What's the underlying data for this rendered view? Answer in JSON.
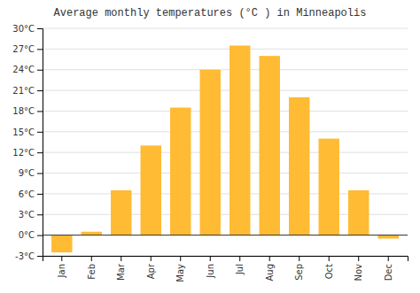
{
  "chart_data": {
    "type": "bar",
    "title": "Average monthly temperatures (°C ) in Minneapolis",
    "categories": [
      "Jan",
      "Feb",
      "Mar",
      "Apr",
      "May",
      "Jun",
      "Jul",
      "Aug",
      "Sep",
      "Oct",
      "Nov",
      "Dec"
    ],
    "values": [
      -2.5,
      0.5,
      6.5,
      13.0,
      18.5,
      24.0,
      27.5,
      26.0,
      20.0,
      14.0,
      6.5,
      -0.5
    ],
    "color": "#FFBB33",
    "ylim": [
      -3,
      30
    ],
    "yticks": [
      {
        "value": -3,
        "label": "-3°C"
      },
      {
        "value": 0,
        "label": "0°C"
      },
      {
        "value": 3,
        "label": "3°C"
      },
      {
        "value": 6,
        "label": "6°C"
      },
      {
        "value": 9,
        "label": "9°C"
      },
      {
        "value": 12,
        "label": "12°C"
      },
      {
        "value": 15,
        "label": "15°C"
      },
      {
        "value": 18,
        "label": "18°C"
      },
      {
        "value": 21,
        "label": "21°C"
      },
      {
        "value": 24,
        "label": "24°C"
      },
      {
        "value": 27,
        "label": "27°C"
      },
      {
        "value": 30,
        "label": "30°C"
      }
    ],
    "grid": true
  }
}
